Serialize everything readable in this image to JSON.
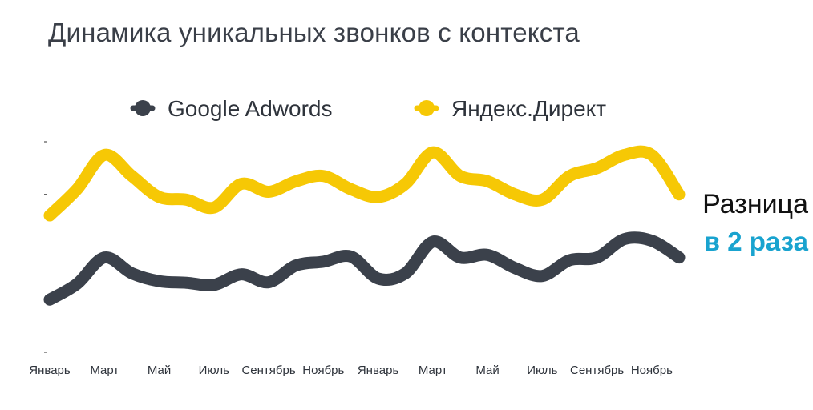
{
  "title": "Динамика уникальных звонков с контекста",
  "callout": {
    "line1": "Разница",
    "line2": "в 2 раза"
  },
  "chart_data": {
    "type": "line",
    "title": "Динамика уникальных звонков с контекста",
    "categories": [
      "Январь",
      "",
      "Март",
      "",
      "Май",
      "",
      "Июль",
      "",
      "Сентябрь",
      "",
      "Ноябрь",
      "",
      "Январь",
      "",
      "Март",
      "",
      "Май",
      "",
      "Июль",
      "",
      "Сентябрь",
      "",
      "Ноябрь",
      ""
    ],
    "tick_labels": [
      "Январь",
      "Март",
      "Май",
      "Июль",
      "Сентябрь",
      "Ноябрь",
      "Январь",
      "Март",
      "Май",
      "Июль",
      "Сентябрь",
      "Ноябрь"
    ],
    "ylim": [
      0,
      4
    ],
    "grid": false,
    "legend": "top-center",
    "series": [
      {
        "name": "Google Adwords",
        "color": "#3b414b",
        "values": [
          1.0,
          1.3,
          1.8,
          1.5,
          1.35,
          1.32,
          1.28,
          1.48,
          1.33,
          1.65,
          1.72,
          1.82,
          1.4,
          1.5,
          2.1,
          1.8,
          1.85,
          1.6,
          1.45,
          1.75,
          1.8,
          2.15,
          2.12,
          1.8
        ]
      },
      {
        "name": "Яндекс.Директ",
        "color": "#f6c805",
        "values": [
          2.6,
          3.1,
          3.75,
          3.35,
          2.95,
          2.9,
          2.75,
          3.2,
          3.05,
          3.25,
          3.35,
          3.1,
          2.95,
          3.2,
          3.8,
          3.35,
          3.25,
          3.0,
          2.9,
          3.35,
          3.5,
          3.75,
          3.75,
          3.0
        ]
      }
    ]
  }
}
